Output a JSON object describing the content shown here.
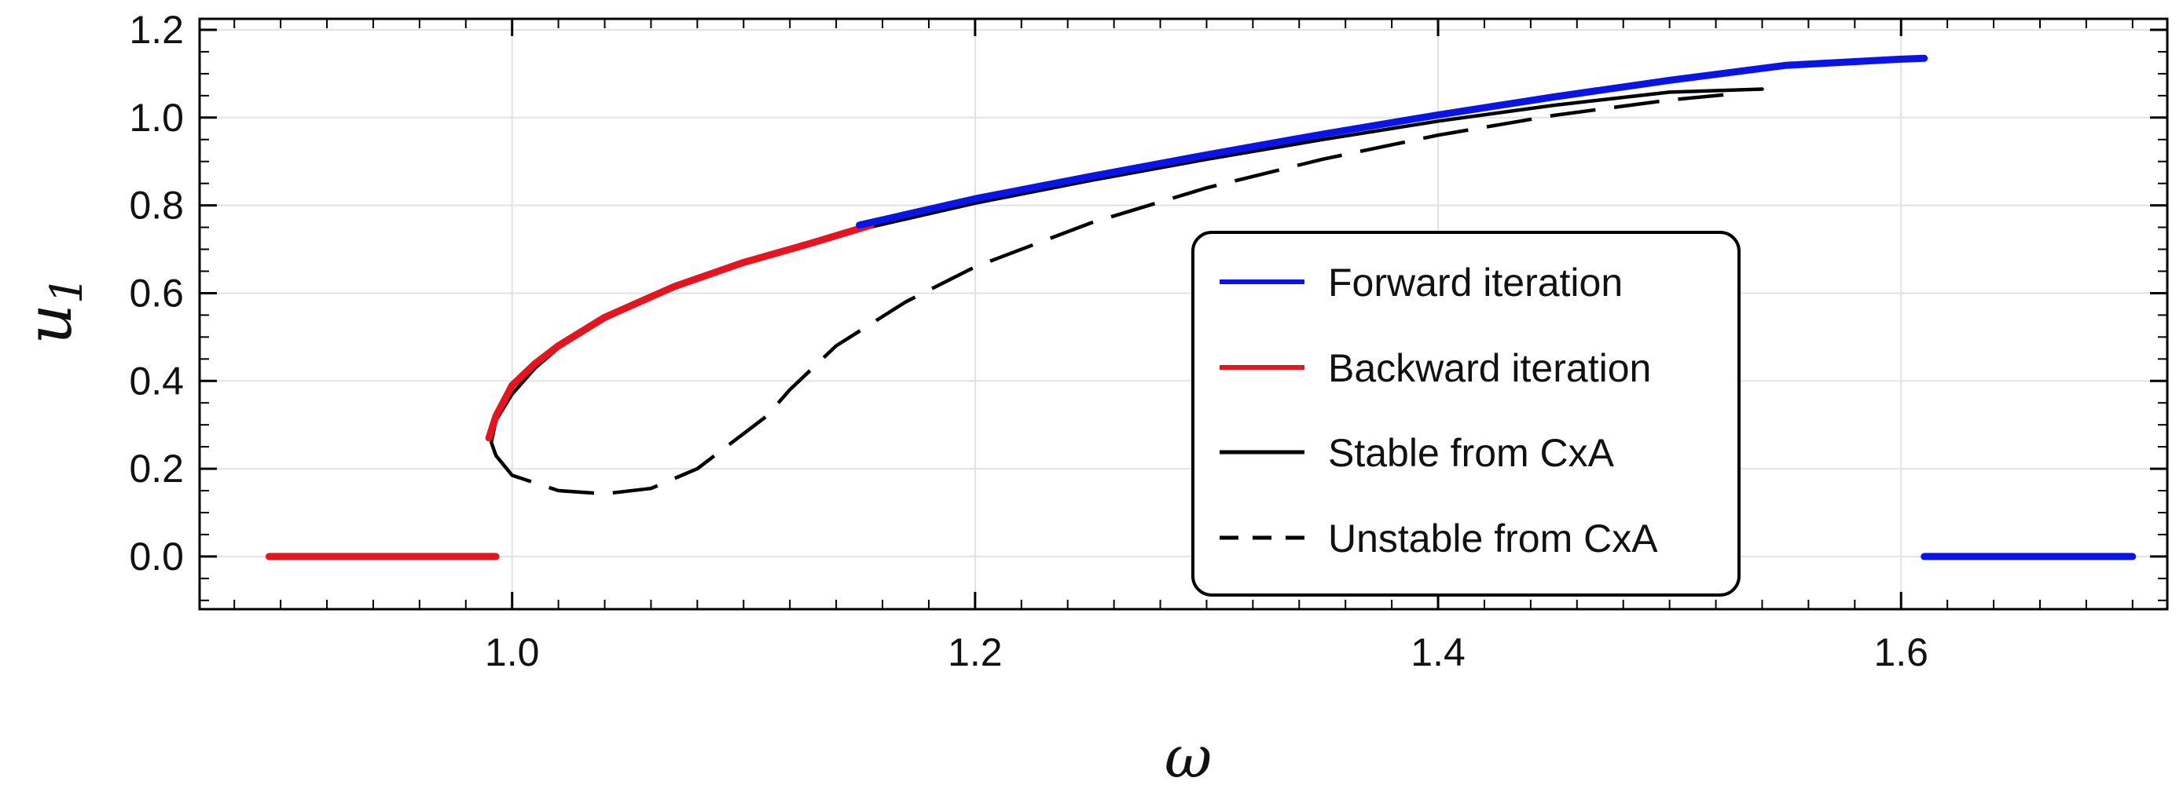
{
  "chart_data": {
    "type": "line",
    "xlabel": "ω",
    "ylabel_main": "u",
    "ylabel_sub": "1",
    "xlim": [
      0.865,
      1.715
    ],
    "ylim": [
      -0.12,
      1.225
    ],
    "xticks": [
      1.0,
      1.2,
      1.4,
      1.6
    ],
    "xtick_labels": [
      "1.0",
      "1.2",
      "1.4",
      "1.6"
    ],
    "yticks": [
      0.0,
      0.2,
      0.4,
      0.6,
      0.8,
      1.0,
      1.2
    ],
    "ytick_labels": [
      "0.0",
      "0.2",
      "0.4",
      "0.6",
      "0.8",
      "1.0",
      "1.2"
    ],
    "grid": true,
    "legend_position": "lower-right",
    "colors": {
      "forward": "#0a14e6",
      "backward": "#e6141e",
      "cxa": "#000000"
    },
    "series": [
      {
        "name": "Forward iteration",
        "style": "solid-thick",
        "color": "#0a14e6",
        "segments": [
          {
            "x": [
              1.15,
              1.2,
              1.25,
              1.3,
              1.35,
              1.4,
              1.45,
              1.5,
              1.55,
              1.6,
              1.61
            ],
            "y": [
              0.755,
              0.815,
              0.866,
              0.915,
              0.962,
              1.006,
              1.047,
              1.085,
              1.119,
              1.133,
              1.135
            ]
          },
          {
            "x": [
              1.61,
              1.7
            ],
            "y": [
              0.0,
              0.0
            ]
          }
        ]
      },
      {
        "name": "Backward iteration",
        "style": "solid-thick",
        "color": "#e6141e",
        "segments": [
          {
            "x": [
              0.99,
              0.993,
              0.997,
              1.0,
              1.01,
              1.02,
              1.04,
              1.07,
              1.1,
              1.13,
              1.155
            ],
            "y": [
              0.27,
              0.32,
              0.36,
              0.39,
              0.44,
              0.48,
              0.545,
              0.615,
              0.67,
              0.715,
              0.755
            ]
          },
          {
            "x": [
              0.895,
              0.993
            ],
            "y": [
              0.0,
              0.0
            ]
          }
        ]
      },
      {
        "name": "Stable from CxA",
        "style": "solid",
        "color": "#000000",
        "segments": [
          {
            "x": [
              0.993,
              0.991,
              0.993,
              1.0,
              1.01,
              1.02,
              1.04,
              1.07,
              1.1,
              1.15,
              1.2,
              1.25,
              1.3,
              1.35,
              1.4,
              1.45,
              1.5,
              1.54
            ],
            "y": [
              0.23,
              0.26,
              0.31,
              0.37,
              0.43,
              0.475,
              0.54,
              0.615,
              0.67,
              0.745,
              0.805,
              0.857,
              0.905,
              0.95,
              0.992,
              1.028,
              1.058,
              1.065
            ]
          }
        ]
      },
      {
        "name": "Unstable from CxA",
        "style": "dashed",
        "color": "#000000",
        "segments": [
          {
            "x": [
              0.993,
              1.0,
              1.02,
              1.04,
              1.06,
              1.08,
              1.09,
              1.1,
              1.11,
              1.12,
              1.14,
              1.17,
              1.2,
              1.25,
              1.3,
              1.35,
              1.4,
              1.45,
              1.5,
              1.53
            ],
            "y": [
              0.23,
              0.185,
              0.15,
              0.143,
              0.155,
              0.2,
              0.24,
              0.28,
              0.32,
              0.38,
              0.48,
              0.58,
              0.66,
              0.76,
              0.84,
              0.905,
              0.96,
              1.005,
              1.04,
              1.055
            ]
          }
        ]
      }
    ]
  }
}
